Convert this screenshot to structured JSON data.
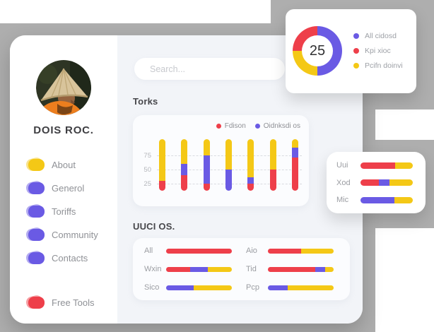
{
  "colors": {
    "red": "#EE3F4A",
    "yellow": "#F4C816",
    "purple": "#6A5AE4",
    "gray_background": "#AEAEAE",
    "content_background": "#F2F4F8"
  },
  "profile": {
    "name": "DOIS ROC."
  },
  "sidebar": {
    "menu": [
      {
        "label": "About",
        "color": "yellow"
      },
      {
        "label": "Generol",
        "color": "purple"
      },
      {
        "label": "Toriffs",
        "color": "purple"
      },
      {
        "label": "Community",
        "color": "purple"
      },
      {
        "label": "Contacts",
        "color": "purple"
      }
    ],
    "footer": {
      "label": "Free Tools",
      "color": "red"
    }
  },
  "search": {
    "placeholder": "Search..."
  },
  "sections": {
    "torks_title": "Torks",
    "uuci_title": "UUCI OS."
  },
  "chart_data": [
    {
      "type": "bar",
      "variant": "stacked-column",
      "title": "Torks",
      "legend": [
        {
          "label": "Fdison",
          "color": "red"
        },
        {
          "label": "Oidnksdi os",
          "color": "purple"
        }
      ],
      "y_ticks": [
        75,
        50,
        25
      ],
      "ylim": [
        0,
        104
      ],
      "grid": "dashed horizontal",
      "stack_order_bottom_up": [
        "red",
        "purple",
        "yellow"
      ],
      "bars": [
        {
          "red": 30,
          "purple": 30
        },
        {
          "red": 40,
          "purple": 60
        },
        {
          "red": 25,
          "purple": 75
        },
        {
          "red": 0,
          "purple": 50
        },
        {
          "red": 25,
          "purple": 37
        },
        {
          "red": 50,
          "purple": 50
        },
        {
          "red": 72,
          "purple": 89
        }
      ],
      "note": "values are cumulative stack boundaries read off the axis; yellow fills from the purple boundary to 104"
    },
    {
      "type": "bar",
      "variant": "stacked-rows-grid",
      "title": "UUCI OS.",
      "columns": [
        [
          {
            "label": "All",
            "segments": [
              [
                "red",
                100
              ]
            ]
          },
          {
            "label": "Wxin",
            "segments": [
              [
                "red",
                37
              ],
              [
                "purple",
                26
              ],
              [
                "yellow",
                37
              ]
            ]
          },
          {
            "label": "Sico",
            "segments": [
              [
                "purple",
                42
              ],
              [
                "yellow",
                58
              ]
            ]
          }
        ],
        [
          {
            "label": "Aio",
            "segments": [
              [
                "red",
                50
              ],
              [
                "yellow",
                50
              ]
            ]
          },
          {
            "label": "Tid",
            "segments": [
              [
                "red",
                72
              ],
              [
                "purple",
                15
              ],
              [
                "yellow",
                13
              ]
            ]
          },
          {
            "label": "Pcp",
            "segments": [
              [
                "purple",
                30
              ],
              [
                "yellow",
                70
              ]
            ]
          }
        ]
      ]
    },
    {
      "type": "bar",
      "variant": "stacked-rows",
      "title": "",
      "rows": [
        {
          "label": "Uui",
          "segments": [
            [
              "red",
              66
            ],
            [
              "yellow",
              34
            ]
          ]
        },
        {
          "label": "Xod",
          "segments": [
            [
              "red",
              35
            ],
            [
              "purple",
              21
            ],
            [
              "yellow",
              44
            ]
          ]
        },
        {
          "label": "Mic",
          "segments": [
            [
              "purple",
              65
            ],
            [
              "yellow",
              35
            ]
          ]
        }
      ]
    },
    {
      "type": "donut",
      "value": "25",
      "segments_clockwise_from_top": [
        {
          "color": "purple",
          "pct": 50
        },
        {
          "color": "yellow",
          "pct": 25
        },
        {
          "color": "red",
          "pct": 25
        }
      ],
      "legend": [
        {
          "label": "All cidosd",
          "color": "purple"
        },
        {
          "label": "Kpi xioc",
          "color": "red"
        },
        {
          "label": "Pcifn doinvi",
          "color": "yellow"
        }
      ]
    }
  ]
}
